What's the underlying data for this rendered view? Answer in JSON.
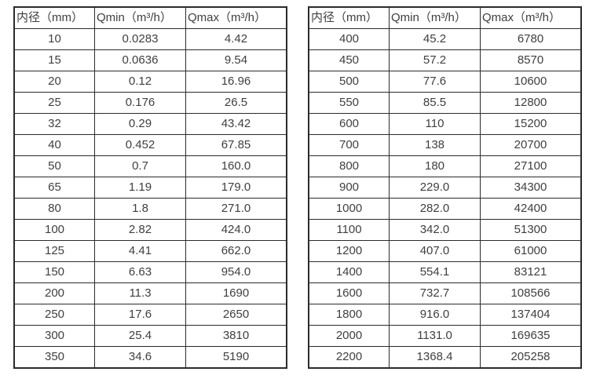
{
  "colors": {
    "background": "#ffffff",
    "table_border": "#2b2b2b",
    "text": "#3f3f3f"
  },
  "tables": [
    {
      "title": "flow-table-small-diameters",
      "headers": [
        "内径（mm）",
        "Qmin（m³/h）",
        "Qmax（m³/h）"
      ],
      "rows": [
        [
          "10",
          "0.0283",
          "4.42"
        ],
        [
          "15",
          "0.0636",
          "9.54"
        ],
        [
          "20",
          "0.12",
          "16.96"
        ],
        [
          "25",
          "0.176",
          "26.5"
        ],
        [
          "32",
          "0.29",
          "43.42"
        ],
        [
          "40",
          "0.452",
          "67.85"
        ],
        [
          "50",
          "0.7",
          "160.0"
        ],
        [
          "65",
          "1.19",
          "179.0"
        ],
        [
          "80",
          "1.8",
          "271.0"
        ],
        [
          "100",
          "2.82",
          "424.0"
        ],
        [
          "125",
          "4.41",
          "662.0"
        ],
        [
          "150",
          "6.63",
          "954.0"
        ],
        [
          "200",
          "11.3",
          "1690"
        ],
        [
          "250",
          "17.6",
          "2650"
        ],
        [
          "300",
          "25.4",
          "3810"
        ],
        [
          "350",
          "34.6",
          "5190"
        ]
      ]
    },
    {
      "title": "flow-table-large-diameters",
      "headers": [
        "内径（mm）",
        "Qmin（m³/h）",
        "Qmax（m³/h）"
      ],
      "rows": [
        [
          "400",
          "45.2",
          "6780"
        ],
        [
          "450",
          "57.2",
          "8570"
        ],
        [
          "500",
          "77.6",
          "10600"
        ],
        [
          "550",
          "85.5",
          "12800"
        ],
        [
          "600",
          "110",
          "15200"
        ],
        [
          "700",
          "138",
          "20700"
        ],
        [
          "800",
          "180",
          "27100"
        ],
        [
          "900",
          "229.0",
          "34300"
        ],
        [
          "1000",
          "282.0",
          "42400"
        ],
        [
          "1100",
          "342.0",
          "51300"
        ],
        [
          "1200",
          "407.0",
          "61000"
        ],
        [
          "1400",
          "554.1",
          "83121"
        ],
        [
          "1600",
          "732.7",
          "108566"
        ],
        [
          "1800",
          "916.0",
          "137404"
        ],
        [
          "2000",
          "1131.0",
          "169635"
        ],
        [
          "2200",
          "1368.4",
          "205258"
        ]
      ]
    }
  ]
}
